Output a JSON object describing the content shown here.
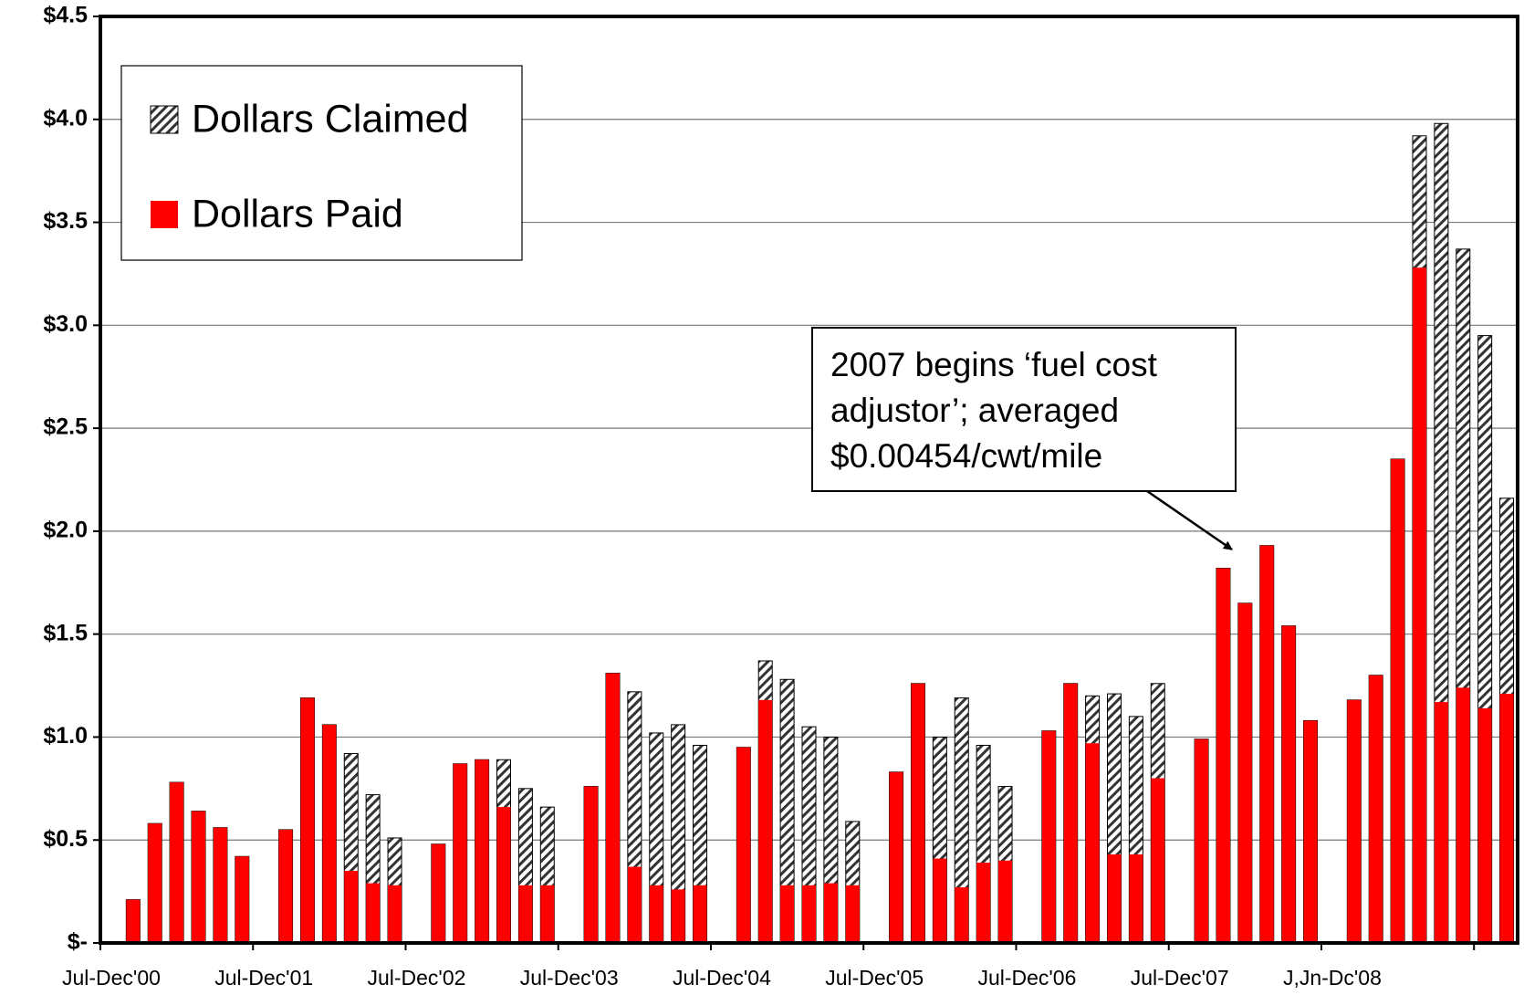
{
  "chart_data": {
    "type": "bar",
    "categories": [
      "Jul-Dec'00",
      null,
      null,
      null,
      null,
      null,
      null,
      "Jul-Dec'01",
      null,
      null,
      null,
      null,
      null,
      null,
      "Jul-Dec'02",
      null,
      null,
      null,
      null,
      null,
      null,
      "Jul-Dec'03",
      null,
      null,
      null,
      null,
      null,
      null,
      "Jul-Dec'04",
      null,
      null,
      null,
      null,
      null,
      null,
      "Jul-Dec'05",
      null,
      null,
      null,
      null,
      null,
      null,
      "Jul-Dec'06",
      null,
      null,
      null,
      null,
      null,
      null,
      "Jul-Dec'07",
      null,
      null,
      null,
      null,
      null,
      null,
      "J,Jn-Dc'08",
      null,
      null,
      null,
      null,
      null,
      null,
      null,
      null
    ],
    "series": [
      {
        "name": "Dollars Claimed",
        "color": "#000000",
        "pattern": "hatch",
        "values": [
          null,
          0.21,
          0.58,
          0.78,
          0.64,
          0.56,
          0.42,
          null,
          0.55,
          1.19,
          1.06,
          0.92,
          0.72,
          0.51,
          null,
          0.48,
          0.87,
          0.89,
          0.89,
          0.75,
          0.66,
          null,
          0.76,
          1.31,
          1.22,
          1.02,
          1.06,
          0.96,
          null,
          0.95,
          1.37,
          1.28,
          1.05,
          1.0,
          0.59,
          null,
          0.83,
          1.26,
          1.0,
          1.19,
          0.96,
          0.76,
          null,
          1.03,
          1.26,
          1.2,
          1.21,
          1.1,
          1.26,
          null,
          0.99,
          1.82,
          1.65,
          1.93,
          1.54,
          1.08,
          null,
          1.18,
          1.3,
          2.35,
          3.92,
          3.98,
          3.37,
          2.95,
          2.16
        ]
      },
      {
        "name": "Dollars Paid",
        "color": "#ff0000",
        "values": [
          null,
          0.21,
          0.58,
          0.78,
          0.64,
          0.56,
          0.42,
          null,
          0.55,
          1.19,
          1.06,
          0.35,
          0.29,
          0.28,
          null,
          0.48,
          0.87,
          0.89,
          0.66,
          0.28,
          0.28,
          null,
          0.76,
          1.31,
          0.37,
          0.28,
          0.26,
          0.28,
          null,
          0.95,
          1.18,
          0.28,
          0.28,
          0.29,
          0.28,
          null,
          0.83,
          1.26,
          0.41,
          0.27,
          0.39,
          0.4,
          null,
          1.03,
          1.26,
          0.97,
          0.43,
          0.43,
          0.8,
          null,
          0.99,
          1.82,
          1.65,
          1.93,
          1.54,
          1.08,
          null,
          1.18,
          1.3,
          2.35,
          3.28,
          1.17,
          1.24,
          1.14,
          1.21
        ]
      }
    ],
    "ylim": [
      0,
      4.5
    ],
    "yticks": [
      {
        "value": 0,
        "label": "$-"
      },
      {
        "value": 0.5,
        "label": "$0.5"
      },
      {
        "value": 1,
        "label": "$1.0"
      },
      {
        "value": 1.5,
        "label": "$1.5"
      },
      {
        "value": 2,
        "label": "$2.0"
      },
      {
        "value": 2.5,
        "label": "$2.5"
      },
      {
        "value": 3,
        "label": "$3.0"
      },
      {
        "value": 3.5,
        "label": "$3.5"
      },
      {
        "value": 4,
        "label": "$4.0"
      },
      {
        "value": 4.5,
        "label": "$4.5"
      }
    ],
    "grid": true,
    "legend": "upper left",
    "annotation": [
      "2007 begins ‘fuel cost",
      "adjustor’; averaged",
      "$0.00454/cwt/mile"
    ]
  }
}
